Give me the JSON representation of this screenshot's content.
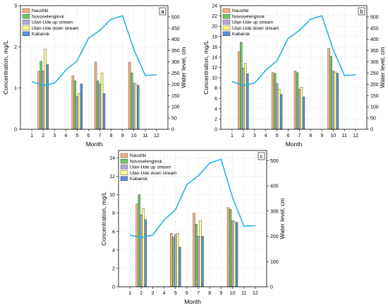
{
  "chart_data": [
    {
      "type": "bar",
      "panel_label": "a",
      "xlabel": "Month",
      "ylabel": "Concentration, mg/L",
      "y2label": "Water level, cm",
      "x_ticks": [
        1,
        2,
        3,
        4,
        5,
        6,
        7,
        8,
        9,
        10,
        11,
        12
      ],
      "y_ticks": [
        0,
        1,
        2,
        3
      ],
      "ylim": [
        0,
        3
      ],
      "y2_ticks": [
        0,
        50,
        100,
        150,
        200,
        250,
        300,
        350,
        400,
        450,
        500
      ],
      "y2lim": [
        0,
        550
      ],
      "legend": "top-left",
      "grid": true,
      "sample_months": [
        2,
        5,
        7,
        10
      ],
      "series": [
        {
          "name": "Naushki",
          "color": "#f4b183",
          "values": [
            1.41,
            1.3,
            1.63,
            1.63
          ]
        },
        {
          "name": "Novoselenginsk",
          "color": "#70c46a",
          "values": [
            1.65,
            1.18,
            1.18,
            1.37
          ]
        },
        {
          "name": "Ulan-Ude up stream",
          "color": "#b4a7d6",
          "values": [
            1.41,
            0.8,
            1.1,
            1.12
          ]
        },
        {
          "name": "Ulan-Ude down stream",
          "color": "#ffff88",
          "values": [
            1.95,
            0.87,
            1.37,
            1.1
          ]
        },
        {
          "name": "Kabansk",
          "color": "#5b8fd6",
          "values": [
            1.57,
            1.1,
            0.87,
            1.07
          ]
        }
      ],
      "water_level": {
        "color": "#1fb4e8",
        "x": [
          1,
          2,
          3,
          4,
          5,
          6,
          7,
          8,
          9,
          10,
          11,
          12
        ],
        "y": [
          212,
          195,
          205,
          263,
          305,
          405,
          440,
          490,
          505,
          355,
          240,
          242
        ]
      }
    },
    {
      "type": "bar",
      "panel_label": "b",
      "xlabel": "Month",
      "ylabel": "Concentration, mg/L",
      "y2label": "Water level, cm",
      "x_ticks": [
        1,
        2,
        3,
        4,
        5,
        6,
        7,
        8,
        9,
        10,
        11,
        12
      ],
      "y_ticks": [
        0,
        2,
        4,
        6,
        8,
        10,
        12,
        14,
        16,
        18,
        20,
        22,
        24
      ],
      "ylim": [
        0,
        24
      ],
      "y2_ticks": [
        0,
        50,
        100,
        150,
        200,
        250,
        300,
        350,
        400,
        450,
        500
      ],
      "y2lim": [
        0,
        550
      ],
      "legend": "top-left",
      "grid": true,
      "sample_months": [
        2,
        5,
        7,
        10
      ],
      "series": [
        {
          "name": "Naushki",
          "color": "#f4b183",
          "values": [
            15.1,
            11.0,
            11.3,
            15.7
          ]
        },
        {
          "name": "Novoselenginsk",
          "color": "#70c46a",
          "values": [
            16.9,
            10.9,
            11.0,
            14.2
          ]
        },
        {
          "name": "Ulan-Ude up stream",
          "color": "#b4a7d6",
          "values": [
            11.9,
            8.9,
            7.8,
            11.3
          ]
        },
        {
          "name": "Ulan-Ude down stream",
          "color": "#ffff88",
          "values": [
            12.8,
            7.8,
            8.2,
            11.1
          ]
        },
        {
          "name": "Kabansk",
          "color": "#5b8fd6",
          "values": [
            10.8,
            6.8,
            6.3,
            10.9
          ]
        }
      ],
      "water_level": {
        "color": "#1fb4e8",
        "x": [
          1,
          2,
          3,
          4,
          5,
          6,
          7,
          8,
          9,
          10,
          11,
          12
        ],
        "y": [
          212,
          195,
          205,
          263,
          305,
          405,
          440,
          490,
          505,
          355,
          240,
          242
        ]
      }
    },
    {
      "type": "bar",
      "panel_label": "c",
      "xlabel": "Month",
      "ylabel": "Concentration, mg/L",
      "y2label": "Water level, cm",
      "x_ticks": [
        1,
        2,
        3,
        4,
        5,
        6,
        7,
        8,
        9,
        10,
        11,
        12
      ],
      "y_ticks": [
        0,
        2,
        4,
        6,
        8,
        10,
        12,
        14
      ],
      "ylim": [
        0,
        14.8
      ],
      "y2_ticks": [
        0,
        100,
        200,
        300,
        400,
        500
      ],
      "y2lim": [
        0,
        540
      ],
      "legend": "top-left",
      "grid": true,
      "sample_months": [
        2,
        5,
        7,
        10
      ],
      "series": [
        {
          "name": "Naushki",
          "color": "#f4b183",
          "values": [
            9.0,
            5.8,
            8.0,
            8.6
          ]
        },
        {
          "name": "Novoselenginsk",
          "color": "#70c46a",
          "values": [
            10.0,
            5.4,
            6.8,
            8.4
          ]
        },
        {
          "name": "Ulan-Ude up stream",
          "color": "#b4a7d6",
          "values": [
            7.8,
            5.7,
            5.5,
            7.2
          ]
        },
        {
          "name": "Ulan-Ude down stream",
          "color": "#ffff88",
          "values": [
            8.5,
            5.8,
            7.2,
            7.1
          ]
        },
        {
          "name": "Kabansk",
          "color": "#5b8fd6",
          "values": [
            7.3,
            4.3,
            5.5,
            7.0
          ]
        }
      ],
      "water_level": {
        "color": "#1fb4e8",
        "x": [
          1,
          2,
          3,
          4,
          5,
          6,
          7,
          8,
          9,
          10,
          11,
          12
        ],
        "y": [
          205,
          195,
          205,
          265,
          305,
          405,
          440,
          490,
          505,
          355,
          240,
          242
        ]
      }
    }
  ]
}
